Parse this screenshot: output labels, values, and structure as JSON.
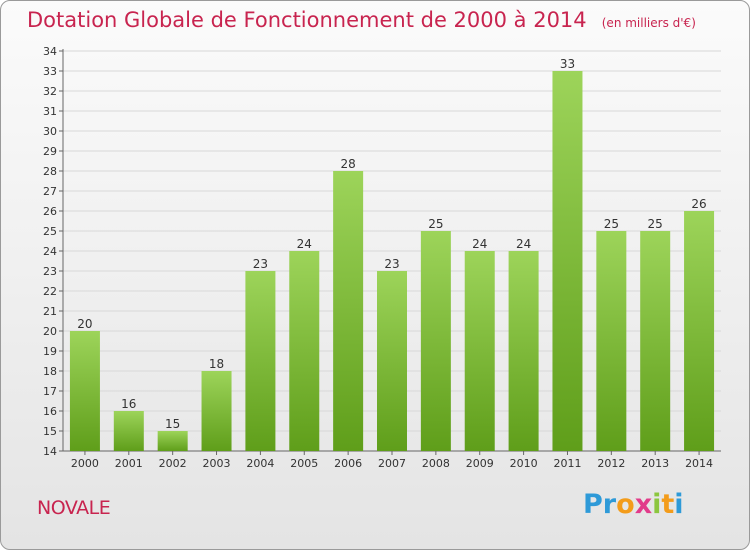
{
  "title": "Dotation Globale de Fonctionnement de 2000 à 2014",
  "subtitle": "(en milliers d'€)",
  "commune": "NOVALE",
  "logo": {
    "letters": [
      "P",
      "r",
      "o",
      "x",
      "i",
      "t",
      "i"
    ],
    "colors": [
      "#2e9ad8",
      "#2e9ad8",
      "#f39c1b",
      "#e23b8a",
      "#8cc63f",
      "#f39c1b",
      "#2e9ad8"
    ]
  },
  "colors": {
    "title": "#c8244f",
    "bar_top": "#9dd45a",
    "bar_bottom": "#5f9e1a",
    "grid": "#d8d8d8"
  },
  "chart_data": {
    "type": "bar",
    "categories": [
      "2000",
      "2001",
      "2002",
      "2003",
      "2004",
      "2005",
      "2006",
      "2007",
      "2008",
      "2009",
      "2010",
      "2011",
      "2012",
      "2013",
      "2014"
    ],
    "values": [
      20,
      16,
      15,
      18,
      23,
      24,
      28,
      23,
      25,
      24,
      24,
      33,
      25,
      25,
      26
    ],
    "ylim": [
      14,
      34
    ],
    "yticks": [
      14,
      15,
      16,
      17,
      18,
      19,
      20,
      21,
      22,
      23,
      24,
      25,
      26,
      27,
      28,
      29,
      30,
      31,
      32,
      33,
      34
    ],
    "grid": true,
    "xlabel": "",
    "ylabel": ""
  }
}
